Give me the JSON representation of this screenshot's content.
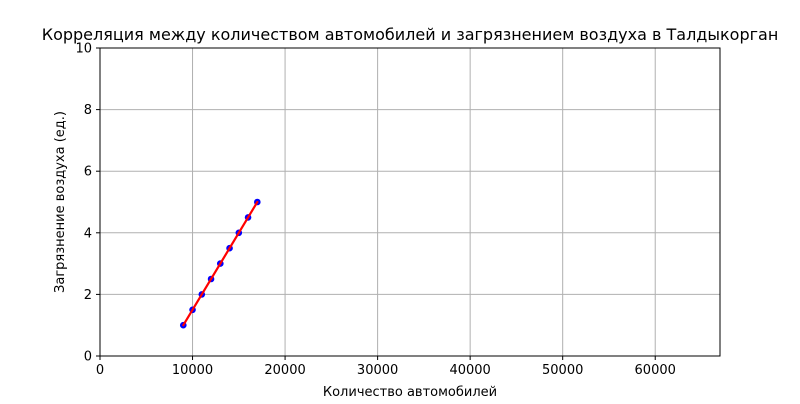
{
  "chart_data": {
    "type": "scatter",
    "title": "Корреляция между количеством автомобилей и загрязнением воздуха в Талдыкорган",
    "xlabel": "Количество автомобилей",
    "ylabel": "Загрязнение воздуха (ед.)",
    "xlim": [
      0,
      67000
    ],
    "ylim": [
      0,
      10
    ],
    "xticks": [
      0,
      10000,
      20000,
      30000,
      40000,
      50000,
      60000
    ],
    "xtick_labels": [
      "0",
      "10000",
      "20000",
      "30000",
      "40000",
      "50000",
      "60000"
    ],
    "yticks": [
      0,
      2,
      4,
      6,
      8,
      10
    ],
    "ytick_labels": [
      "0",
      "2",
      "4",
      "6",
      "8",
      "10"
    ],
    "grid": true,
    "legend": "none",
    "series": [
      {
        "kind": "scatter",
        "color": "#0000ff",
        "x": [
          9000,
          10000,
          11000,
          12000,
          13000,
          14000,
          15000,
          16000,
          17000
        ],
        "y": [
          1.0,
          1.5,
          2.0,
          2.5,
          3.0,
          3.5,
          4.0,
          4.5,
          5.0
        ]
      },
      {
        "kind": "line",
        "color": "#ff0000",
        "x": [
          9000,
          17000
        ],
        "y": [
          1.0,
          5.0
        ]
      }
    ]
  }
}
